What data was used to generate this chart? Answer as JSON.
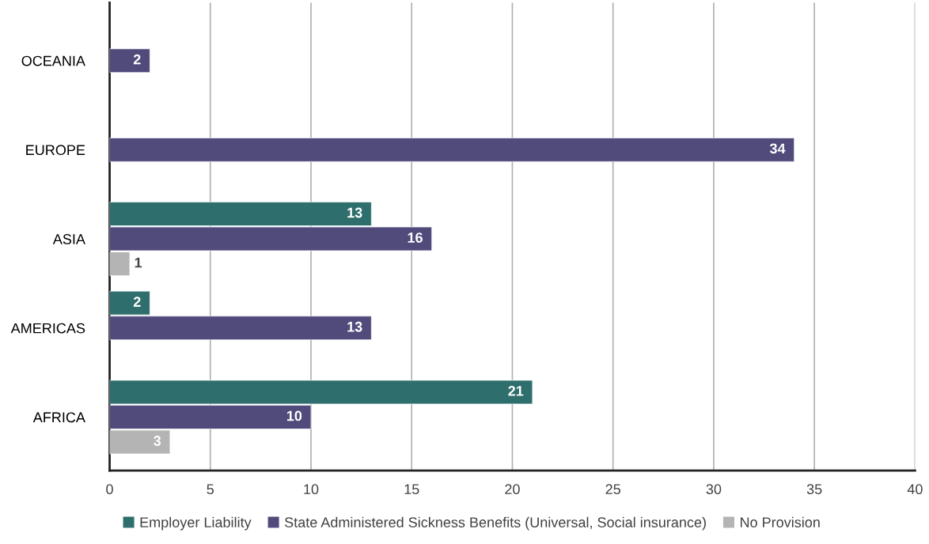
{
  "chart_data": {
    "type": "bar",
    "orientation": "horizontal",
    "categories": [
      "OCEANIA",
      "EUROPE",
      "ASIA",
      "AMERICAS",
      "AFRICA"
    ],
    "series": [
      {
        "name": "Employer Liability",
        "color": "#2e6e6c",
        "values": [
          null,
          null,
          13,
          2,
          21
        ]
      },
      {
        "name": "State Administered Sickness Benefits (Universal, Social insurance)",
        "color": "#514b7c",
        "values": [
          2,
          34,
          16,
          13,
          10
        ]
      },
      {
        "name": "No Provision",
        "color": "#b4b4b4",
        "values": [
          null,
          null,
          1,
          null,
          3
        ]
      }
    ],
    "xlim": [
      0,
      40
    ],
    "xticks": [
      0,
      5,
      10,
      15,
      20,
      25,
      30,
      35,
      40
    ],
    "grid": "x",
    "legend": "bottom",
    "data_labels": true
  }
}
